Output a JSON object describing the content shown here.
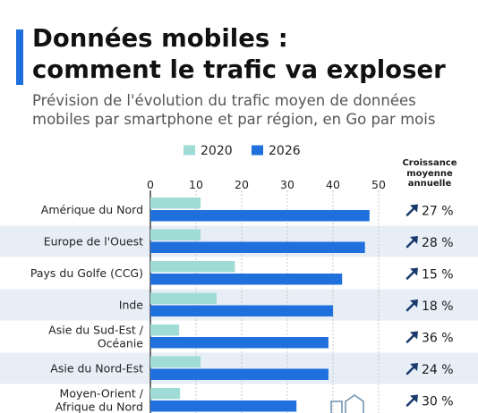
{
  "header": {
    "title_lines": [
      "Données mobiles :",
      "comment le trafic va exploser"
    ],
    "subtitle_lines": [
      "Prévision de l'évolution du trafic moyen de données",
      "mobiles par smartphone et par région, en Go par mois"
    ],
    "accent_color": "#1f6fdc"
  },
  "growth_header_lines": [
    "Croissance",
    "moyenne",
    "annuelle"
  ],
  "growth_icon": "trend-up-arrow-icon",
  "chart_data": {
    "type": "bar",
    "orientation": "horizontal",
    "categories": [
      [
        "Amérique du Nord"
      ],
      [
        "Europe de l'Ouest"
      ],
      [
        "Pays du Golfe (CCG)"
      ],
      [
        "Inde"
      ],
      [
        "Asie du Sud-Est /",
        "Océanie"
      ],
      [
        "Asie du Nord-Est"
      ],
      [
        "Moyen-Orient /",
        "Afrique du Nord"
      ]
    ],
    "series": [
      {
        "name": "2020",
        "color": "#9fdcd6",
        "values": [
          11,
          11,
          18.5,
          14.5,
          6.3,
          11,
          6.5
        ]
      },
      {
        "name": "2026",
        "color": "#1f6fdc",
        "values": [
          48,
          47,
          42,
          40,
          39,
          39,
          32
        ]
      }
    ],
    "growth_rates": [
      "27 %",
      "28 %",
      "15 %",
      "18 %",
      "36 %",
      "24 %",
      "30 %"
    ],
    "xlim": [
      0,
      50
    ],
    "xticks": [
      "0",
      "10",
      "20",
      "30",
      "40",
      "50"
    ],
    "grid": true,
    "legend_placement": "top",
    "alt_row_color": "#e8eef6"
  }
}
